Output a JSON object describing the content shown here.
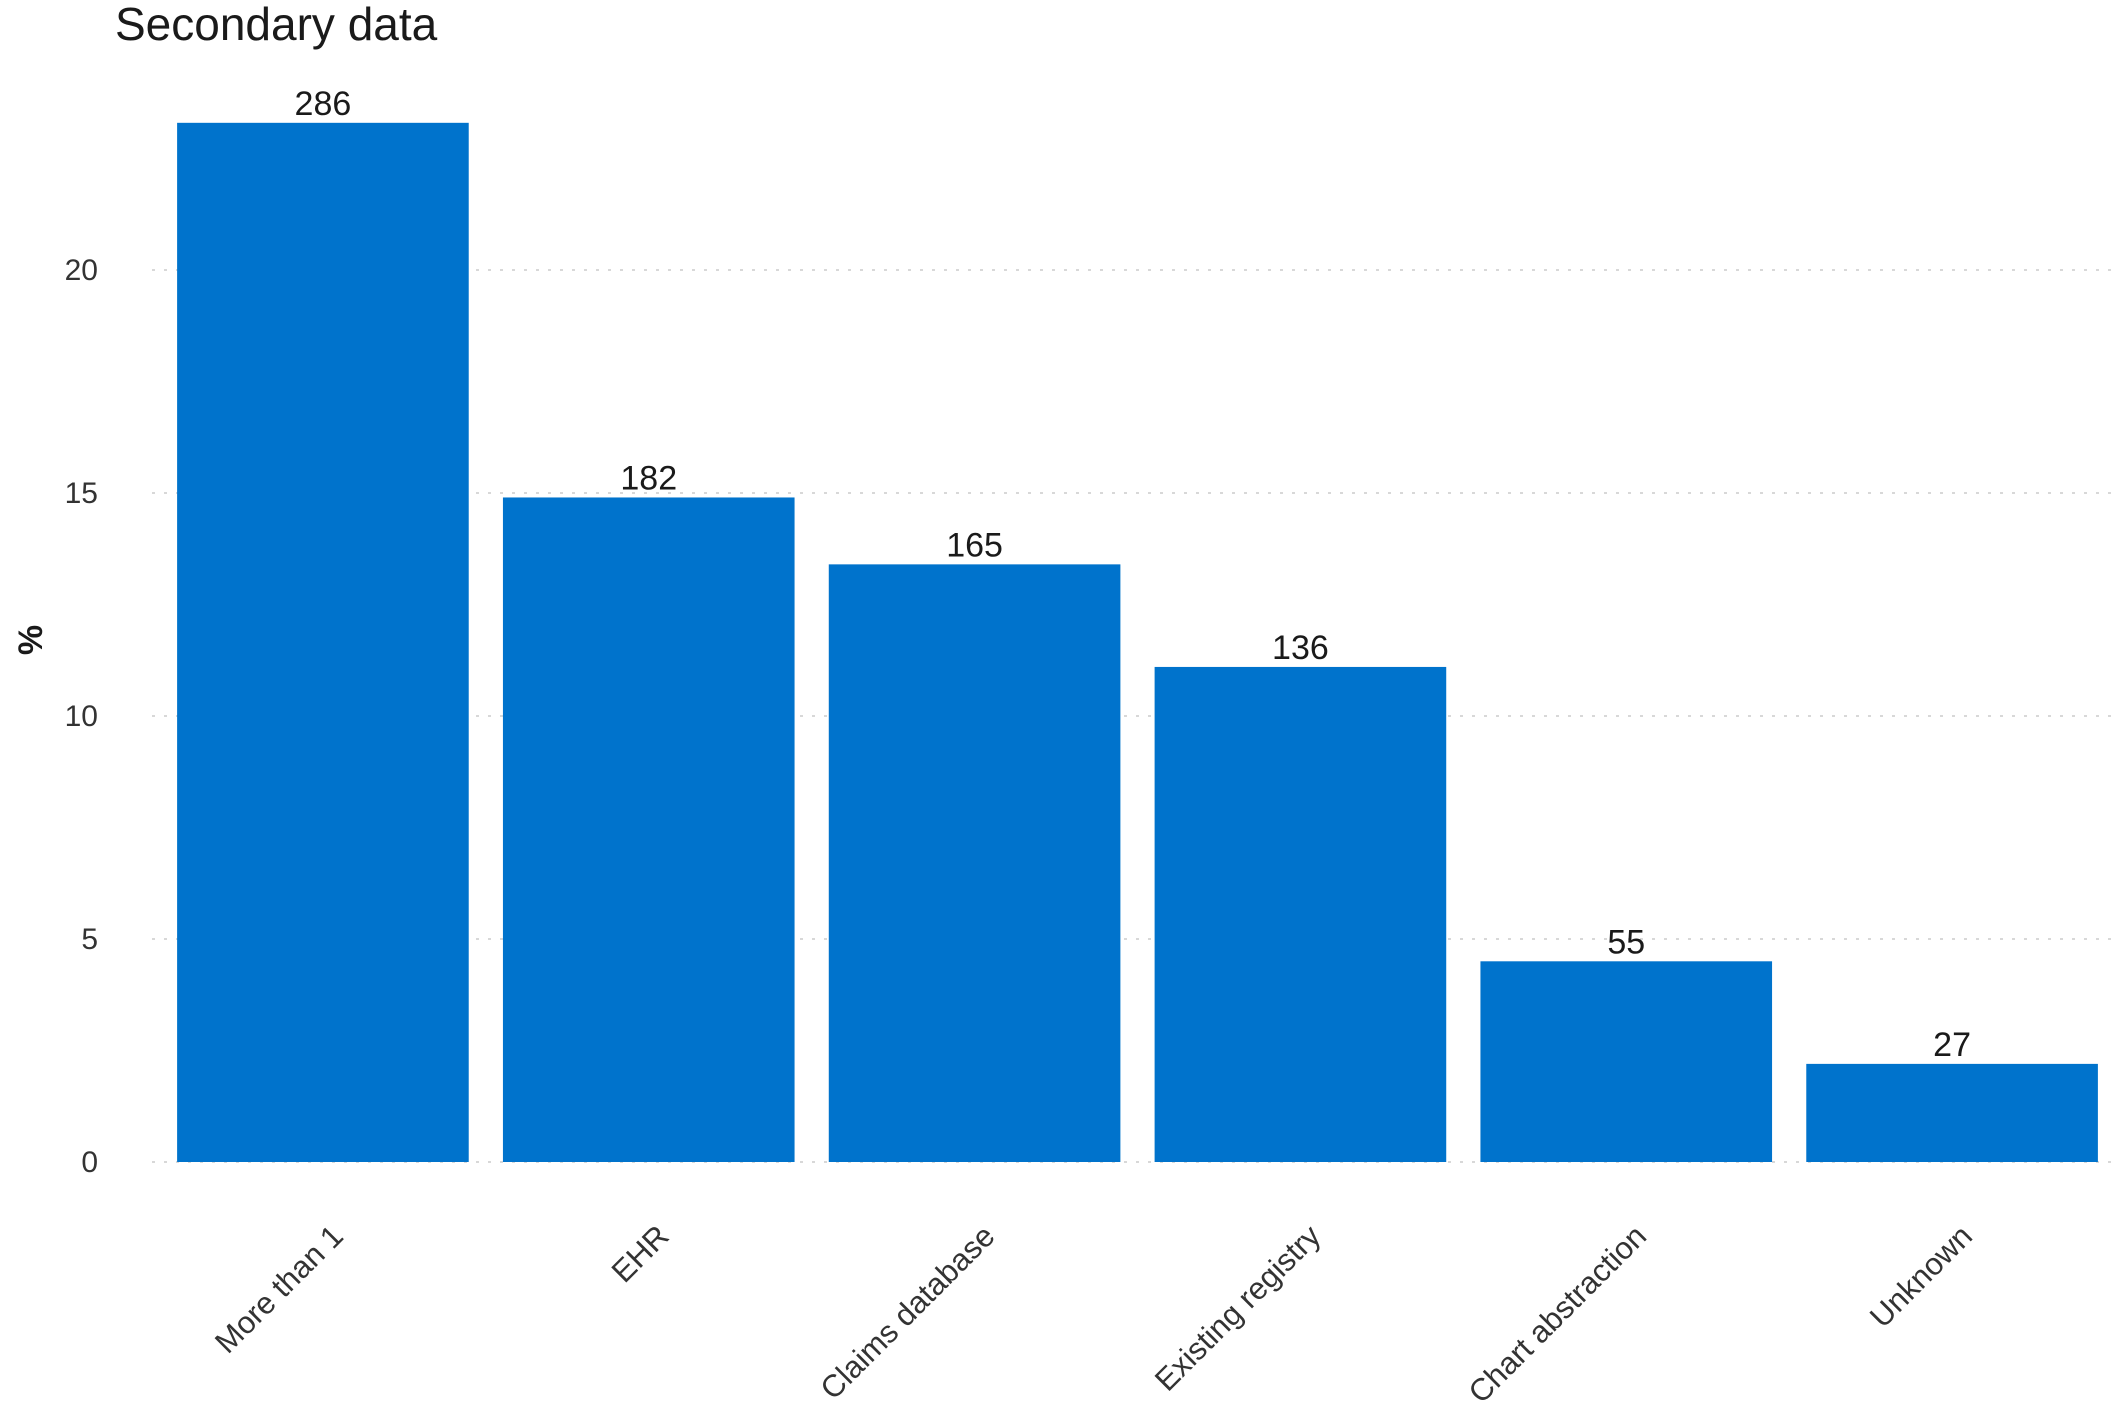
{
  "chart_data": {
    "type": "bar",
    "title": "Secondary data",
    "xlabel": "",
    "ylabel": "%",
    "categories": [
      "More than 1",
      "EHR",
      "Claims database",
      "Existing registry",
      "Chart abstraction",
      "Unknown"
    ],
    "values": [
      23.3,
      14.9,
      13.4,
      11.1,
      4.5,
      2.2
    ],
    "data_labels": [
      "286",
      "182",
      "165",
      "136",
      "55",
      "27"
    ],
    "ylim": [
      0,
      25
    ],
    "yticks": [
      0,
      5,
      10,
      15,
      20
    ],
    "grid": true,
    "grid_style": "dotted horizontal",
    "legend": "none",
    "bar_color": "#0073CC"
  }
}
